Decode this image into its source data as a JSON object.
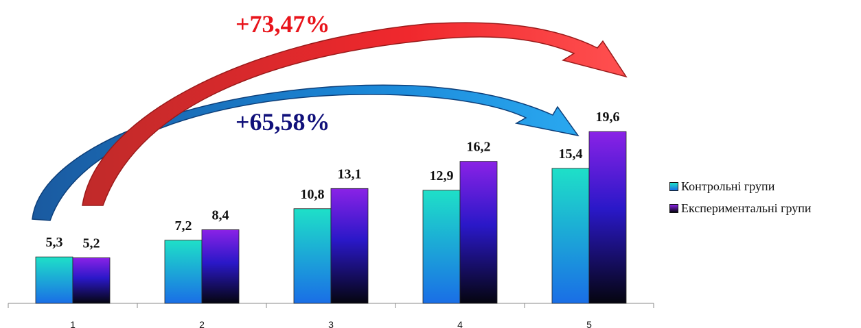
{
  "chart_data": {
    "type": "bar",
    "categories": [
      "1",
      "2",
      "3",
      "4",
      "5"
    ],
    "series": [
      {
        "name": "Контрольні групи",
        "values": [
          5.3,
          7.2,
          10.8,
          12.9,
          15.4
        ],
        "labels": [
          "5,3",
          "7,2",
          "10,8",
          "12,9",
          "15,4"
        ]
      },
      {
        "name": "Експериментальні групи",
        "values": [
          5.2,
          8.4,
          13.1,
          16.2,
          19.6
        ],
        "labels": [
          "5,2",
          "8,4",
          "13,1",
          "16,2",
          "19,6"
        ]
      }
    ],
    "ylim": [
      0,
      21
    ],
    "grid": false,
    "legend_position": "right",
    "annotations": [
      {
        "text": "+73,47%",
        "series": "Експериментальні групи",
        "from": "1",
        "to": "5",
        "color": "#e8141b"
      },
      {
        "text": "+65,58%",
        "series": "Контрольні групи",
        "from": "1",
        "to": "5",
        "color": "#10107a"
      }
    ],
    "colors": {
      "control_top": "#1ee0c8",
      "control_bottom": "#1a6ee6",
      "experimental_top": "#8a22e6",
      "experimental_bottom": "#05050f",
      "red_arrow": "#f0282d",
      "blue_arrow": "#1a86d6"
    }
  }
}
